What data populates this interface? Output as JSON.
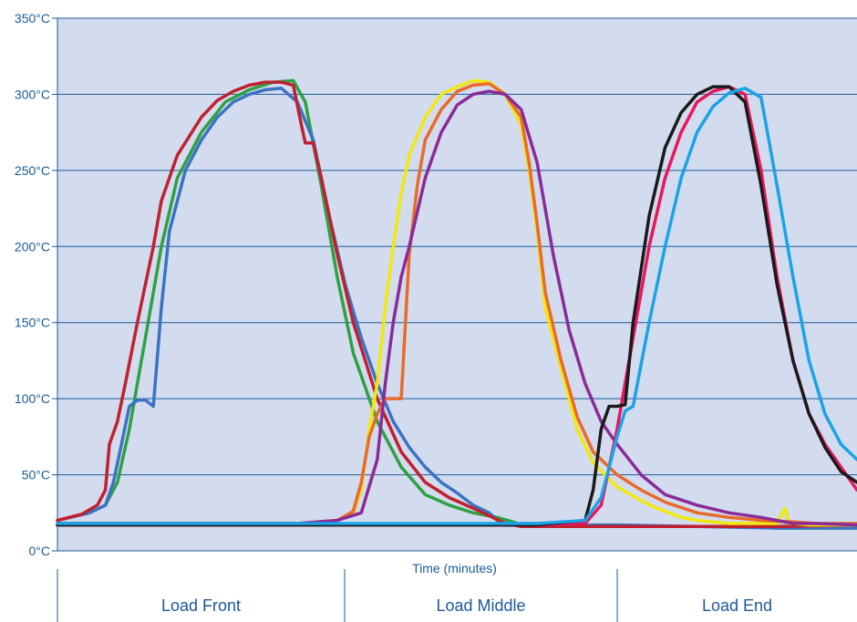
{
  "chart_data": {
    "type": "line",
    "xlabel": "Time (minutes)",
    "ylabel": "",
    "ylim": [
      0,
      350
    ],
    "xlim": [
      0,
      100
    ],
    "yticks": [
      {
        "value": 0,
        "label": "0°C"
      },
      {
        "value": 50,
        "label": "50°C"
      },
      {
        "value": 100,
        "label": "100°C"
      },
      {
        "value": 150,
        "label": "150°C"
      },
      {
        "value": 200,
        "label": "200°C"
      },
      {
        "value": 250,
        "label": "250°C"
      },
      {
        "value": 300,
        "label": "300°C"
      },
      {
        "value": 350,
        "label": "350°C"
      }
    ],
    "grid": true,
    "plot_background": "#d3dcee",
    "grid_color": "#1b5a9a",
    "sections": [
      "Load Front",
      "Load Middle",
      "Load End"
    ],
    "series": [
      {
        "color": "#2fa043",
        "x": [
          0,
          4,
          6,
          7.5,
          9,
          11,
          13,
          15,
          18,
          21,
          24,
          27,
          29.5,
          31,
          33,
          35,
          37,
          40,
          43,
          46,
          49,
          52,
          55,
          57,
          58,
          62,
          66,
          70,
          75,
          80,
          85,
          90,
          95,
          100
        ],
        "y": [
          20,
          25,
          30,
          45,
          80,
          140,
          200,
          245,
          275,
          295,
          303,
          308,
          309,
          295,
          240,
          180,
          130,
          85,
          55,
          37,
          30,
          25,
          22,
          19,
          17,
          16,
          16,
          16,
          16,
          16,
          16,
          15,
          15,
          15
        ]
      },
      {
        "color": "#3b72c4",
        "x": [
          0,
          4,
          6,
          7,
          8,
          9,
          10,
          11,
          12,
          13,
          14,
          16,
          18,
          20,
          22,
          24,
          26,
          28,
          30,
          32,
          34,
          36,
          38,
          40,
          42,
          44,
          46,
          48,
          50,
          52,
          54,
          55,
          56,
          57,
          60,
          65,
          70,
          80,
          90,
          100
        ],
        "y": [
          20,
          25,
          30,
          45,
          70,
          95,
          99,
          99,
          95,
          160,
          210,
          250,
          270,
          285,
          295,
          300,
          303,
          304,
          295,
          270,
          220,
          175,
          140,
          110,
          85,
          68,
          55,
          45,
          38,
          30,
          25,
          20,
          18,
          18,
          18,
          17,
          17,
          16,
          15,
          15
        ]
      },
      {
        "color": "#c0202f",
        "x": [
          0,
          3,
          5,
          6,
          6.5,
          7.5,
          8.5,
          10,
          12,
          13,
          15,
          18,
          20,
          22,
          24,
          26,
          28,
          29.5,
          30.5,
          31,
          32,
          33,
          35,
          37,
          40,
          43,
          46,
          49,
          52,
          54,
          56,
          58,
          62,
          66,
          70,
          80,
          90,
          100
        ],
        "y": [
          20,
          24,
          30,
          40,
          70,
          85,
          110,
          150,
          200,
          230,
          260,
          285,
          296,
          302,
          306,
          308,
          308,
          306,
          280,
          268,
          268,
          245,
          195,
          150,
          100,
          65,
          45,
          35,
          28,
          23,
          18,
          16,
          16,
          16,
          16,
          16,
          16,
          17
        ]
      },
      {
        "color": "#f1e80c",
        "x": [
          0,
          20,
          30,
          35,
          37,
          38,
          39,
          40,
          41,
          42,
          43,
          44,
          46,
          48,
          50,
          52,
          54,
          56,
          58,
          59,
          60,
          61,
          63,
          65,
          67,
          70,
          73,
          75,
          78,
          80,
          84,
          90,
          91,
          91.5,
          92,
          94,
          100
        ],
        "y": [
          18,
          18,
          18,
          20,
          25,
          40,
          80,
          110,
          160,
          200,
          235,
          260,
          285,
          300,
          305,
          309,
          308,
          300,
          280,
          250,
          210,
          160,
          120,
          80,
          58,
          42,
          33,
          28,
          22,
          20,
          18,
          18,
          28,
          18,
          18,
          17,
          17
        ]
      },
      {
        "color": "#e96a2a",
        "x": [
          0,
          20,
          30,
          35,
          37,
          38,
          39,
          40,
          41,
          42,
          43,
          44,
          45,
          46,
          48,
          50,
          52,
          54,
          56,
          58,
          59,
          60,
          61,
          63,
          65,
          67,
          70,
          73,
          76,
          80,
          84,
          88,
          92,
          95,
          100
        ],
        "y": [
          18,
          18,
          18,
          20,
          26,
          45,
          75,
          90,
          100,
          100,
          100,
          195,
          240,
          270,
          290,
          302,
          306,
          307,
          300,
          285,
          255,
          215,
          170,
          125,
          88,
          65,
          50,
          40,
          32,
          25,
          22,
          20,
          19,
          18,
          18
        ]
      },
      {
        "color": "#8a2b98",
        "x": [
          0,
          20,
          30,
          35,
          38,
          40,
          41,
          42,
          43,
          44,
          46,
          48,
          50,
          52,
          54,
          56,
          58,
          60,
          61,
          62,
          64,
          66,
          68,
          70,
          73,
          76,
          80,
          84,
          88,
          92,
          95,
          100
        ],
        "y": [
          18,
          18,
          18,
          20,
          25,
          60,
          110,
          150,
          180,
          200,
          245,
          275,
          293,
          300,
          302,
          300,
          290,
          255,
          225,
          195,
          145,
          110,
          85,
          70,
          50,
          37,
          30,
          25,
          22,
          18,
          18,
          17
        ]
      },
      {
        "color": "#e8175d",
        "x": [
          0,
          30,
          60,
          66,
          68,
          70,
          72,
          74,
          76,
          78,
          80,
          82,
          84,
          86,
          88,
          90,
          92,
          94,
          96,
          98,
          100
        ],
        "y": [
          17,
          17,
          17,
          18,
          30,
          80,
          140,
          200,
          245,
          275,
          295,
          302,
          305,
          300,
          250,
          180,
          125,
          90,
          70,
          55,
          40
        ]
      },
      {
        "color": "#1a1a1a",
        "x": [
          0,
          30,
          60,
          66,
          67,
          68,
          69,
          70,
          71,
          72,
          74,
          76,
          78,
          80,
          82,
          84,
          86,
          88,
          90,
          92,
          94,
          96,
          98,
          100
        ],
        "y": [
          17,
          17,
          17,
          20,
          40,
          80,
          95,
          95,
          96,
          150,
          220,
          265,
          288,
          300,
          305,
          305,
          295,
          240,
          175,
          125,
          90,
          68,
          52,
          45
        ]
      },
      {
        "color": "#1aa3e6",
        "x": [
          0,
          30,
          55,
          60,
          66,
          68,
          70,
          71,
          72,
          74,
          76,
          78,
          80,
          82,
          84,
          86,
          88,
          90,
          92,
          94,
          96,
          98,
          100
        ],
        "y": [
          18,
          18,
          18,
          18,
          20,
          35,
          75,
          92,
          95,
          150,
          200,
          245,
          275,
          292,
          301,
          304,
          298,
          240,
          180,
          125,
          90,
          70,
          60
        ]
      }
    ]
  }
}
